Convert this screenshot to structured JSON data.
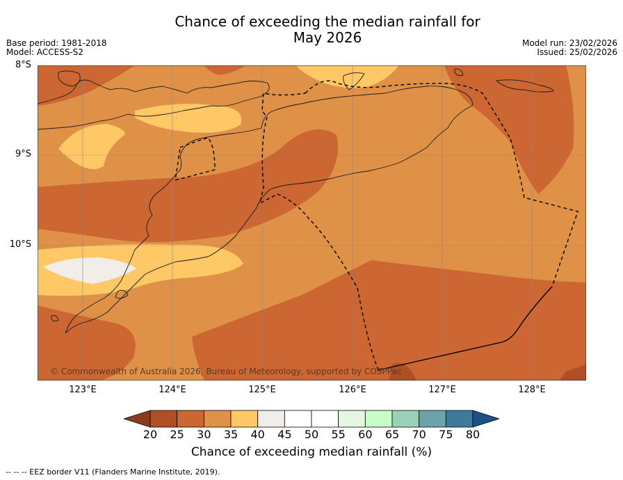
{
  "title_line1": "Chance of exceeding the median rainfall for",
  "title_line2": "May 2026",
  "meta_left": {
    "base_period": "Base period: 1981-2018",
    "model": "Model: ACCESS-S2"
  },
  "meta_right": {
    "model_run": "Model run: 23/02/2026",
    "issued": "Issued: 25/02/2026"
  },
  "lat_labels": [
    "8°S",
    "9°S",
    "10°S"
  ],
  "lon_labels": [
    "123°E",
    "124°E",
    "125°E",
    "126°E",
    "127°E",
    "128°E"
  ],
  "copyright": "© Commonwealth of Australia 2026, Bureau of Meteorology, supported by COSPPac",
  "colorbar": {
    "ticks": [
      "20",
      "25",
      "30",
      "35",
      "40",
      "45",
      "50",
      "55",
      "60",
      "65",
      "70",
      "75",
      "80"
    ],
    "colors": [
      "#8b3a1e",
      "#b04f25",
      "#cc6633",
      "#e09148",
      "#fec866",
      "#f1ede8",
      "#ffffff",
      "#ffffff",
      "#e6f5e4",
      "#c8fcc8",
      "#99d1b8",
      "#6ba4a8",
      "#3e7a9c",
      "#1e4f86"
    ],
    "label": "Chance of exceeding median rainfall (%)"
  },
  "legend_footnote": "--  --  -- EEZ border V11 (Flanders Marine Institute, 2019).",
  "region": {
    "lat_min": -11.5,
    "lat_max": -8.0,
    "lon_min": 122.5,
    "lon_max": 128.6
  },
  "category_colors": {
    "c25_30": "#cc6633",
    "c30_35": "#e09148",
    "c35_40": "#fec866",
    "c40_45": "#f1ede8"
  }
}
